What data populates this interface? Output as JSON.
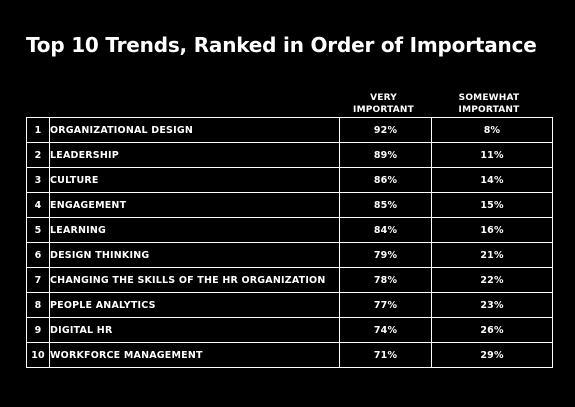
{
  "chart_data": {
    "type": "table",
    "title": "Top 10 Trends, Ranked in Order of Importance",
    "columns": [
      "VERY IMPORTANT",
      "SOMEWHAT IMPORTANT"
    ],
    "header_lines": {
      "very": [
        "VERY",
        "IMPORTANT"
      ],
      "somewhat": [
        "SOMEWHAT",
        "IMPORTANT"
      ]
    },
    "rows": [
      {
        "rank": "1",
        "trend": "ORGANIZATIONAL DESIGN",
        "very": "92%",
        "somewhat": "8%"
      },
      {
        "rank": "2",
        "trend": "LEADERSHIP",
        "very": "89%",
        "somewhat": "11%"
      },
      {
        "rank": "3",
        "trend": "CULTURE",
        "very": "86%",
        "somewhat": "14%"
      },
      {
        "rank": "4",
        "trend": "ENGAGEMENT",
        "very": "85%",
        "somewhat": "15%"
      },
      {
        "rank": "5",
        "trend": "LEARNING",
        "very": "84%",
        "somewhat": "16%"
      },
      {
        "rank": "6",
        "trend": "DESIGN THINKING",
        "very": "79%",
        "somewhat": "21%"
      },
      {
        "rank": "7",
        "trend": "CHANGING THE SKILLS OF THE HR ORGANIZATION",
        "very": "78%",
        "somewhat": "22%"
      },
      {
        "rank": "8",
        "trend": "PEOPLE ANALYTICS",
        "very": "77%",
        "somewhat": "23%"
      },
      {
        "rank": "9",
        "trend": "DIGITAL HR",
        "very": "74%",
        "somewhat": "26%"
      },
      {
        "rank": "10",
        "trend": "WORKFORCE MANAGEMENT",
        "very": "71%",
        "somewhat": "29%"
      }
    ]
  },
  "colors": {
    "background": "#000000",
    "text": "#ffffff",
    "border": "#ffffff"
  }
}
